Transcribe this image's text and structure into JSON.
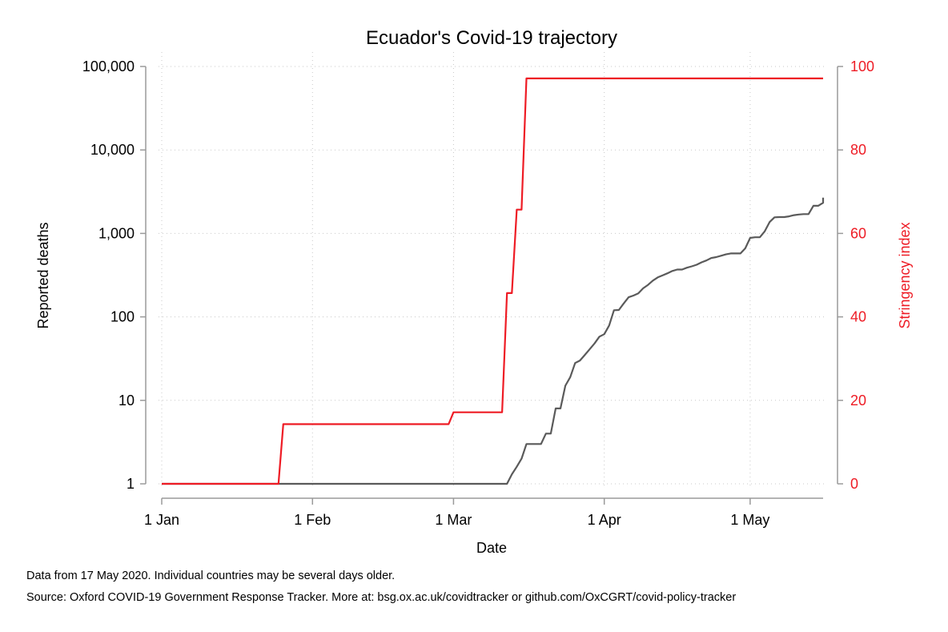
{
  "chart_data": {
    "type": "line",
    "title": "Ecuador's Covid-19 trajectory",
    "xlabel": "Date",
    "ylabel_left": "Reported deaths",
    "ylabel_right": "Stringency index",
    "x_ticks": [
      {
        "label": "1 Jan",
        "date": "2020-01-01"
      },
      {
        "label": "1 Feb",
        "date": "2020-02-01"
      },
      {
        "label": "1 Mar",
        "date": "2020-03-01"
      },
      {
        "label": "1 Apr",
        "date": "2020-04-01"
      },
      {
        "label": "1 May",
        "date": "2020-05-01"
      }
    ],
    "xlim": [
      "2020-01-01",
      "2020-05-16"
    ],
    "y_left": {
      "scale": "log",
      "ylim": [
        1,
        100000
      ],
      "ticks": [
        {
          "value": 1,
          "label": "1"
        },
        {
          "value": 10,
          "label": "10"
        },
        {
          "value": 100,
          "label": "100"
        },
        {
          "value": 1000,
          "label": "1,000"
        },
        {
          "value": 10000,
          "label": "10,000"
        },
        {
          "value": 100000,
          "label": "100,000"
        }
      ]
    },
    "y_right": {
      "scale": "linear",
      "ylim": [
        0,
        100
      ],
      "ticks": [
        {
          "value": 0,
          "label": "0"
        },
        {
          "value": 20,
          "label": "20"
        },
        {
          "value": 40,
          "label": "40"
        },
        {
          "value": 60,
          "label": "60"
        },
        {
          "value": 80,
          "label": "80"
        },
        {
          "value": 100,
          "label": "100"
        }
      ]
    },
    "grid": true,
    "colors": {
      "deaths": "#5a5a5a",
      "stringency": "#ee1c25",
      "axis": "#9a9a9a",
      "grid": "#c8c8c8"
    },
    "series": [
      {
        "axis": "left",
        "points": [
          [
            "2020-01-01",
            1
          ],
          [
            "2020-03-12",
            1
          ],
          [
            "2020-03-13",
            1.3
          ],
          [
            "2020-03-14",
            1.6
          ],
          [
            "2020-03-15",
            2
          ],
          [
            "2020-03-16",
            3
          ],
          [
            "2020-03-19",
            3
          ],
          [
            "2020-03-20",
            4
          ],
          [
            "2020-03-21",
            4
          ],
          [
            "2020-03-22",
            8
          ],
          [
            "2020-03-23",
            8
          ],
          [
            "2020-03-24",
            15
          ],
          [
            "2020-03-25",
            19
          ],
          [
            "2020-03-26",
            28
          ],
          [
            "2020-03-27",
            30
          ],
          [
            "2020-03-28",
            35
          ],
          [
            "2020-03-29",
            41
          ],
          [
            "2020-03-30",
            48
          ],
          [
            "2020-03-31",
            58
          ],
          [
            "2020-04-01",
            62
          ],
          [
            "2020-04-02",
            79
          ],
          [
            "2020-04-03",
            120
          ],
          [
            "2020-04-04",
            121
          ],
          [
            "2020-04-05",
            145
          ],
          [
            "2020-04-06",
            172
          ],
          [
            "2020-04-07",
            180
          ],
          [
            "2020-04-08",
            191
          ],
          [
            "2020-04-09",
            220
          ],
          [
            "2020-04-10",
            242
          ],
          [
            "2020-04-11",
            272
          ],
          [
            "2020-04-12",
            297
          ],
          [
            "2020-04-13",
            315
          ],
          [
            "2020-04-14",
            333
          ],
          [
            "2020-04-15",
            355
          ],
          [
            "2020-04-16",
            369
          ],
          [
            "2020-04-17",
            369
          ],
          [
            "2020-04-18",
            388
          ],
          [
            "2020-04-19",
            403
          ],
          [
            "2020-04-20",
            421
          ],
          [
            "2020-04-21",
            450
          ],
          [
            "2020-04-22",
            474
          ],
          [
            "2020-04-23",
            507
          ],
          [
            "2020-04-24",
            520
          ],
          [
            "2020-04-25",
            540
          ],
          [
            "2020-04-26",
            560
          ],
          [
            "2020-04-27",
            576
          ],
          [
            "2020-04-28",
            576
          ],
          [
            "2020-04-29",
            576
          ],
          [
            "2020-04-30",
            663
          ],
          [
            "2020-05-01",
            883
          ],
          [
            "2020-05-02",
            900
          ],
          [
            "2020-05-03",
            900
          ],
          [
            "2020-05-04",
            1060
          ],
          [
            "2020-05-05",
            1370
          ],
          [
            "2020-05-06",
            1560
          ],
          [
            "2020-05-07",
            1569
          ],
          [
            "2020-05-08",
            1569
          ],
          [
            "2020-05-09",
            1600
          ],
          [
            "2020-05-10",
            1654
          ],
          [
            "2020-05-11",
            1684
          ],
          [
            "2020-05-12",
            1704
          ],
          [
            "2020-05-13",
            1704
          ],
          [
            "2020-05-14",
            2145
          ],
          [
            "2020-05-15",
            2145
          ],
          [
            "2020-05-16",
            2327
          ],
          [
            "2020-05-17",
            2334
          ],
          [
            "2020-05-18",
            2338
          ],
          [
            "2020-05-19",
            2594
          ],
          [
            "2020-05-20",
            2688
          ]
        ]
      },
      {
        "axis": "right",
        "points": [
          [
            "2020-01-01",
            0
          ],
          [
            "2020-01-25",
            0
          ],
          [
            "2020-01-26",
            14.29
          ],
          [
            "2020-02-29",
            14.29
          ],
          [
            "2020-03-01",
            17.14
          ],
          [
            "2020-03-11",
            17.14
          ],
          [
            "2020-03-12",
            45.71
          ],
          [
            "2020-03-13",
            45.71
          ],
          [
            "2020-03-14",
            65.71
          ],
          [
            "2020-03-15",
            65.71
          ],
          [
            "2020-03-16",
            97.14
          ],
          [
            "2020-05-20",
            97.14
          ]
        ]
      }
    ]
  },
  "footer": {
    "note1": "Data from 17 May 2020. Individual countries may be several days older.",
    "note2": "Source: Oxford COVID-19 Government Response Tracker. More at: bsg.ox.ac.uk/covidtracker or github.com/OxCGRT/covid-policy-tracker"
  }
}
